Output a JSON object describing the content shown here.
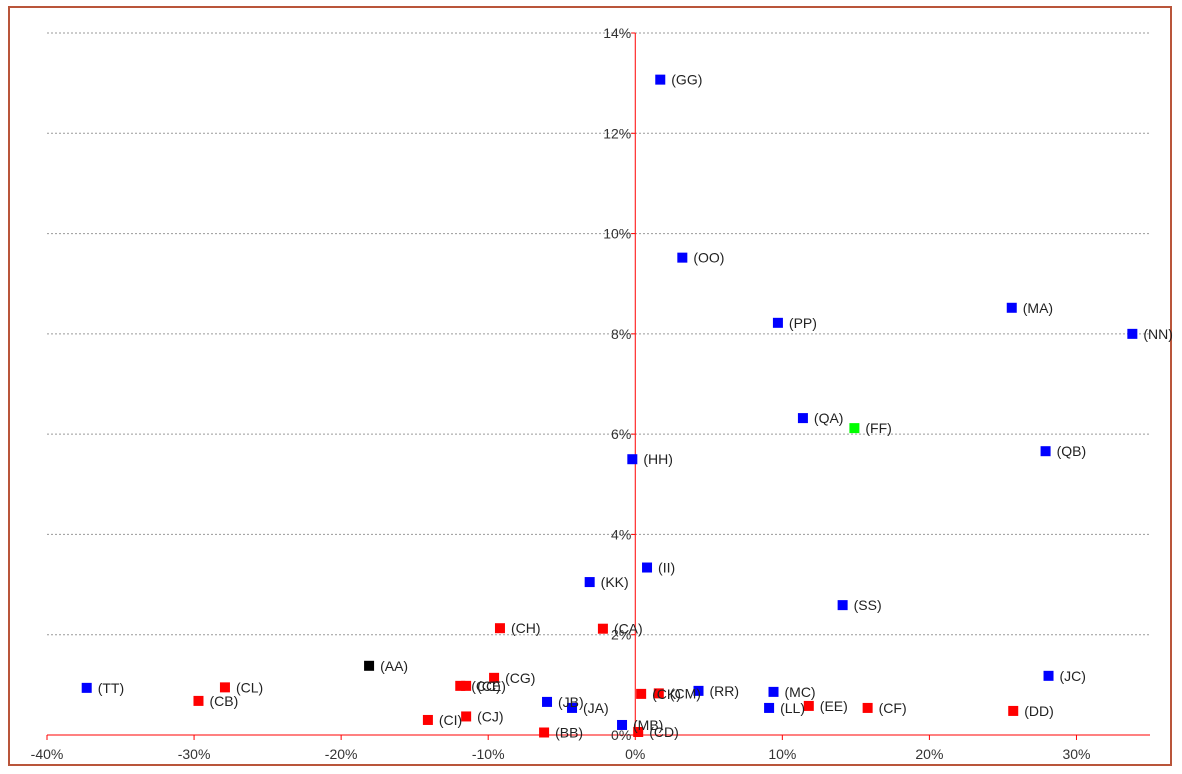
{
  "chart_data": {
    "type": "scatter",
    "title": "",
    "xlabel": "",
    "ylabel": "",
    "xlim": [
      -0.4,
      0.35
    ],
    "ylim": [
      0,
      0.14
    ],
    "x_ticks": [
      -0.4,
      -0.3,
      -0.2,
      -0.1,
      0.0,
      0.1,
      0.2,
      0.3
    ],
    "x_tick_labels": [
      "-40%",
      "-30%",
      "-20%",
      "-10%",
      "0%",
      "10%",
      "20%",
      "30%"
    ],
    "y_ticks": [
      0.02,
      0.04,
      0.06,
      0.08,
      0.1,
      0.12,
      0.14
    ],
    "y_tick_labels": [
      "2%",
      "4%",
      "6%",
      "8%",
      "10%",
      "12%",
      "14%"
    ],
    "y_zero_label": "0%",
    "grid": "horizontal dotted",
    "axis_color": "#ff0000",
    "colors": {
      "blue": "#0000ff",
      "red": "#ff0000",
      "green": "#00ff00",
      "black": "#000000"
    },
    "points": [
      {
        "label": "(GG)",
        "x": 0.017,
        "y": 0.1307,
        "color": "blue"
      },
      {
        "label": "(OO)",
        "x": 0.032,
        "y": 0.0952,
        "color": "blue"
      },
      {
        "label": "(MA)",
        "x": 0.256,
        "y": 0.0852,
        "color": "blue"
      },
      {
        "label": "(NN)",
        "x": 0.338,
        "y": 0.08,
        "color": "blue"
      },
      {
        "label": "(PP)",
        "x": 0.097,
        "y": 0.0822,
        "color": "blue"
      },
      {
        "label": "(QA)",
        "x": 0.114,
        "y": 0.0632,
        "color": "blue"
      },
      {
        "label": "(FF)",
        "x": 0.149,
        "y": 0.0612,
        "color": "green"
      },
      {
        "label": "(QB)",
        "x": 0.279,
        "y": 0.0566,
        "color": "blue"
      },
      {
        "label": "(HH)",
        "x": -0.002,
        "y": 0.055,
        "color": "blue"
      },
      {
        "label": "(II)",
        "x": 0.008,
        "y": 0.0334,
        "color": "blue"
      },
      {
        "label": "(KK)",
        "x": -0.031,
        "y": 0.0305,
        "color": "blue"
      },
      {
        "label": "(SS)",
        "x": 0.141,
        "y": 0.0259,
        "color": "blue"
      },
      {
        "label": "(CH)",
        "x": -0.092,
        "y": 0.0213,
        "color": "red"
      },
      {
        "label": "(CA)",
        "x": -0.022,
        "y": 0.0212,
        "color": "red"
      },
      {
        "label": "(AA)",
        "x": -0.181,
        "y": 0.0138,
        "color": "black"
      },
      {
        "label": "(JC)",
        "x": 0.281,
        "y": 0.0118,
        "color": "blue"
      },
      {
        "label": "(TT)",
        "x": -0.373,
        "y": 0.0094,
        "color": "blue"
      },
      {
        "label": "(CL)",
        "x": -0.279,
        "y": 0.0095,
        "color": "red"
      },
      {
        "label": "(CB)",
        "x": -0.297,
        "y": 0.0068,
        "color": "red"
      },
      {
        "label": "(CC)",
        "x": -0.119,
        "y": 0.0098,
        "color": "red"
      },
      {
        "label": "(CE)",
        "x": -0.115,
        "y": 0.0098,
        "color": "red"
      },
      {
        "label": "(CG)",
        "x": -0.096,
        "y": 0.0114,
        "color": "red"
      },
      {
        "label": "(CM)",
        "x": 0.016,
        "y": 0.0083,
        "color": "red"
      },
      {
        "label": "(CK)",
        "x": 0.004,
        "y": 0.0082,
        "color": "red"
      },
      {
        "label": "(RR)",
        "x": 0.043,
        "y": 0.0088,
        "color": "blue"
      },
      {
        "label": "(MC)",
        "x": 0.094,
        "y": 0.0086,
        "color": "blue"
      },
      {
        "label": "(JB)",
        "x": -0.06,
        "y": 0.0066,
        "color": "blue"
      },
      {
        "label": "(JA)",
        "x": -0.043,
        "y": 0.0054,
        "color": "blue"
      },
      {
        "label": "(LL)",
        "x": 0.091,
        "y": 0.0054,
        "color": "blue"
      },
      {
        "label": "(EE)",
        "x": 0.118,
        "y": 0.0058,
        "color": "red"
      },
      {
        "label": "(CF)",
        "x": 0.158,
        "y": 0.0054,
        "color": "red"
      },
      {
        "label": "(DD)",
        "x": 0.257,
        "y": 0.0048,
        "color": "red"
      },
      {
        "label": "(CI)",
        "x": -0.141,
        "y": 0.003,
        "color": "red"
      },
      {
        "label": "(CJ)",
        "x": -0.115,
        "y": 0.0037,
        "color": "red"
      },
      {
        "label": "(MB)",
        "x": -0.009,
        "y": 0.002,
        "color": "blue"
      },
      {
        "label": "(BB)",
        "x": -0.062,
        "y": 0.0005,
        "color": "red"
      },
      {
        "label": "(CD)",
        "x": 0.002,
        "y": 0.0006,
        "color": "red"
      }
    ]
  }
}
